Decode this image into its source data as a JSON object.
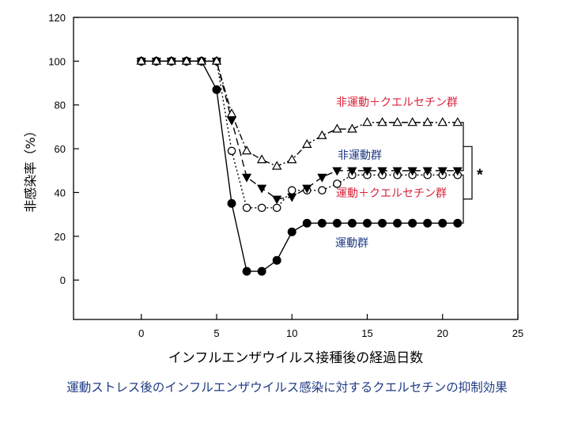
{
  "chart_data": {
    "type": "line",
    "xlabel": "インフルエンザウイルス接種後の経過日数",
    "ylabel": "非感染率（%）",
    "xlim": [
      -4.5,
      25
    ],
    "ylim": [
      -18,
      120
    ],
    "x_ticks": [
      0,
      5,
      10,
      15,
      20,
      25
    ],
    "y_ticks": [
      0,
      20,
      40,
      60,
      80,
      100,
      120
    ],
    "x_tick_labels": [
      "0",
      "5",
      "10",
      "15",
      "20",
      "25"
    ],
    "y_tick_labels": [
      "0",
      "20",
      "40",
      "60",
      "80",
      "100",
      "120"
    ],
    "grid": false,
    "series": [
      {
        "name": "非運動＋クエルセチン群",
        "marker": "triangle-open",
        "line": "dash-dot",
        "color": "#d9233a",
        "x": [
          0,
          1,
          2,
          3,
          4,
          5,
          6,
          7,
          8,
          9,
          10,
          11,
          12,
          13,
          14,
          15,
          16,
          17,
          18,
          19,
          20,
          21
        ],
        "values": [
          100,
          100,
          100,
          100,
          100,
          100,
          76,
          59,
          55,
          52,
          55,
          62,
          66,
          69,
          69,
          72,
          72,
          72,
          72,
          72,
          72,
          72
        ]
      },
      {
        "name": "非運動群",
        "marker": "triangle-down-filled",
        "line": "dashed",
        "color": "#1f3b84",
        "x": [
          0,
          1,
          2,
          3,
          4,
          5,
          6,
          7,
          8,
          9,
          10,
          11,
          12,
          13,
          14,
          15,
          16,
          17,
          18,
          19,
          20,
          21
        ],
        "values": [
          100,
          100,
          100,
          100,
          100,
          100,
          73,
          47,
          42,
          37,
          38,
          42,
          47,
          50,
          50,
          50,
          50,
          50,
          50,
          50,
          50,
          50
        ]
      },
      {
        "name": "運動＋クエルセチン群",
        "marker": "circle-open",
        "line": "dotted",
        "color": "#d9233a",
        "x": [
          0,
          1,
          2,
          3,
          4,
          5,
          6,
          7,
          8,
          9,
          10,
          11,
          12,
          13,
          14,
          15,
          16,
          17,
          18,
          19,
          20,
          21
        ],
        "values": [
          100,
          100,
          100,
          100,
          100,
          100,
          59,
          33,
          33,
          33,
          41,
          41,
          41,
          44,
          48,
          48,
          48,
          48,
          48,
          48,
          48,
          48
        ]
      },
      {
        "name": "運動群",
        "marker": "circle-filled",
        "line": "solid",
        "color": "#1f3b84",
        "x": [
          0,
          1,
          2,
          3,
          4,
          5,
          6,
          7,
          8,
          9,
          10,
          11,
          12,
          13,
          14,
          15,
          16,
          17,
          18,
          19,
          20,
          21
        ],
        "values": [
          100,
          100,
          100,
          100,
          100,
          87,
          35,
          4,
          4,
          9,
          22,
          26,
          26,
          26,
          26,
          26,
          26,
          26,
          26,
          26,
          26,
          26
        ]
      }
    ],
    "significance_marker": "*"
  },
  "caption": "運動ストレス後のインフルエンザウイルス感染に対するクエルセチンの抑制効果"
}
